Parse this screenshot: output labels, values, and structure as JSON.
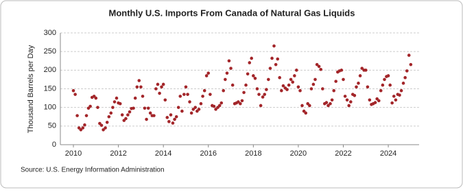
{
  "chart_data": {
    "type": "scatter",
    "title": "Monthly U.S. Imports From Canada of Natural Gas Liquids",
    "y_label": "Thousand Barrels per Day",
    "source": "Source: U.S. Energy Information Administration",
    "color": "#a3262a",
    "grid": true,
    "xlim": [
      2009.42,
      2025.37
    ],
    "xticks": [
      2010,
      2012,
      2014,
      2016,
      2018,
      2020,
      2022,
      2024
    ],
    "ylim": [
      0,
      300
    ],
    "yticks": [
      0,
      50,
      100,
      150,
      200,
      250,
      300
    ],
    "x": [
      2010.0,
      2010.08,
      2010.17,
      2010.25,
      2010.33,
      2010.42,
      2010.5,
      2010.58,
      2010.67,
      2010.75,
      2010.83,
      2010.92,
      2011.0,
      2011.08,
      2011.17,
      2011.25,
      2011.33,
      2011.42,
      2011.5,
      2011.58,
      2011.67,
      2011.75,
      2011.83,
      2011.92,
      2012.0,
      2012.08,
      2012.17,
      2012.25,
      2012.33,
      2012.42,
      2012.5,
      2012.58,
      2012.67,
      2012.75,
      2012.83,
      2012.92,
      2013.0,
      2013.08,
      2013.17,
      2013.25,
      2013.33,
      2013.42,
      2013.5,
      2013.58,
      2013.67,
      2013.75,
      2013.83,
      2013.92,
      2014.0,
      2014.08,
      2014.17,
      2014.25,
      2014.33,
      2014.42,
      2014.5,
      2014.58,
      2014.67,
      2014.75,
      2014.83,
      2014.92,
      2015.0,
      2015.08,
      2015.17,
      2015.25,
      2015.33,
      2015.42,
      2015.5,
      2015.58,
      2015.67,
      2015.75,
      2015.83,
      2015.92,
      2016.0,
      2016.08,
      2016.17,
      2016.25,
      2016.33,
      2016.42,
      2016.5,
      2016.58,
      2016.67,
      2016.75,
      2016.83,
      2016.92,
      2017.0,
      2017.08,
      2017.17,
      2017.25,
      2017.33,
      2017.42,
      2017.5,
      2017.58,
      2017.67,
      2017.75,
      2017.83,
      2017.92,
      2018.0,
      2018.08,
      2018.17,
      2018.25,
      2018.33,
      2018.42,
      2018.5,
      2018.58,
      2018.67,
      2018.75,
      2018.83,
      2018.92,
      2019.0,
      2019.08,
      2019.17,
      2019.25,
      2019.33,
      2019.42,
      2019.5,
      2019.58,
      2019.67,
      2019.75,
      2019.83,
      2019.92,
      2020.0,
      2020.08,
      2020.17,
      2020.25,
      2020.33,
      2020.42,
      2020.5,
      2020.58,
      2020.67,
      2020.75,
      2020.83,
      2020.92,
      2021.0,
      2021.08,
      2021.17,
      2021.25,
      2021.33,
      2021.42,
      2021.5,
      2021.58,
      2021.67,
      2021.75,
      2021.83,
      2021.92,
      2022.0,
      2022.08,
      2022.17,
      2022.25,
      2022.33,
      2022.42,
      2022.5,
      2022.58,
      2022.67,
      2022.75,
      2022.83,
      2022.92,
      2023.0,
      2023.08,
      2023.17,
      2023.25,
      2023.33,
      2023.42,
      2023.5,
      2023.58,
      2023.67,
      2023.75,
      2023.83,
      2023.92,
      2024.0,
      2024.08,
      2024.17,
      2024.25,
      2024.33,
      2024.42,
      2024.5,
      2024.58,
      2024.67,
      2024.75,
      2024.83,
      2024.92,
      2025.0
    ],
    "values": [
      145,
      135,
      78,
      45,
      40,
      45,
      53,
      78,
      98,
      103,
      127,
      130,
      125,
      100,
      57,
      52,
      40,
      45,
      60,
      75,
      85,
      100,
      115,
      125,
      112,
      110,
      80,
      65,
      70,
      80,
      88,
      97,
      98,
      125,
      155,
      172,
      155,
      130,
      98,
      68,
      98,
      85,
      78,
      78,
      150,
      162,
      138,
      155,
      162,
      120,
      73,
      62,
      80,
      58,
      68,
      75,
      100,
      130,
      90,
      135,
      155,
      135,
      115,
      85,
      95,
      100,
      90,
      95,
      110,
      130,
      145,
      185,
      192,
      135,
      105,
      103,
      95,
      100,
      105,
      112,
      145,
      175,
      192,
      225,
      205,
      160,
      110,
      112,
      115,
      110,
      118,
      140,
      160,
      190,
      220,
      232,
      185,
      178,
      150,
      135,
      105,
      128,
      135,
      148,
      175,
      205,
      232,
      265,
      215,
      230,
      180,
      145,
      158,
      152,
      148,
      160,
      175,
      168,
      185,
      200,
      155,
      145,
      105,
      90,
      85,
      110,
      105,
      150,
      162,
      175,
      215,
      210,
      202,
      150,
      110,
      113,
      105,
      110,
      120,
      145,
      170,
      195,
      198,
      200,
      175,
      130,
      120,
      105,
      115,
      135,
      132,
      155,
      165,
      185,
      205,
      200,
      200,
      155,
      120,
      108,
      110,
      113,
      123,
      118,
      145,
      160,
      175,
      183,
      185,
      160,
      112,
      130,
      120,
      135,
      133,
      145,
      165,
      180,
      198,
      240,
      215
    ]
  }
}
